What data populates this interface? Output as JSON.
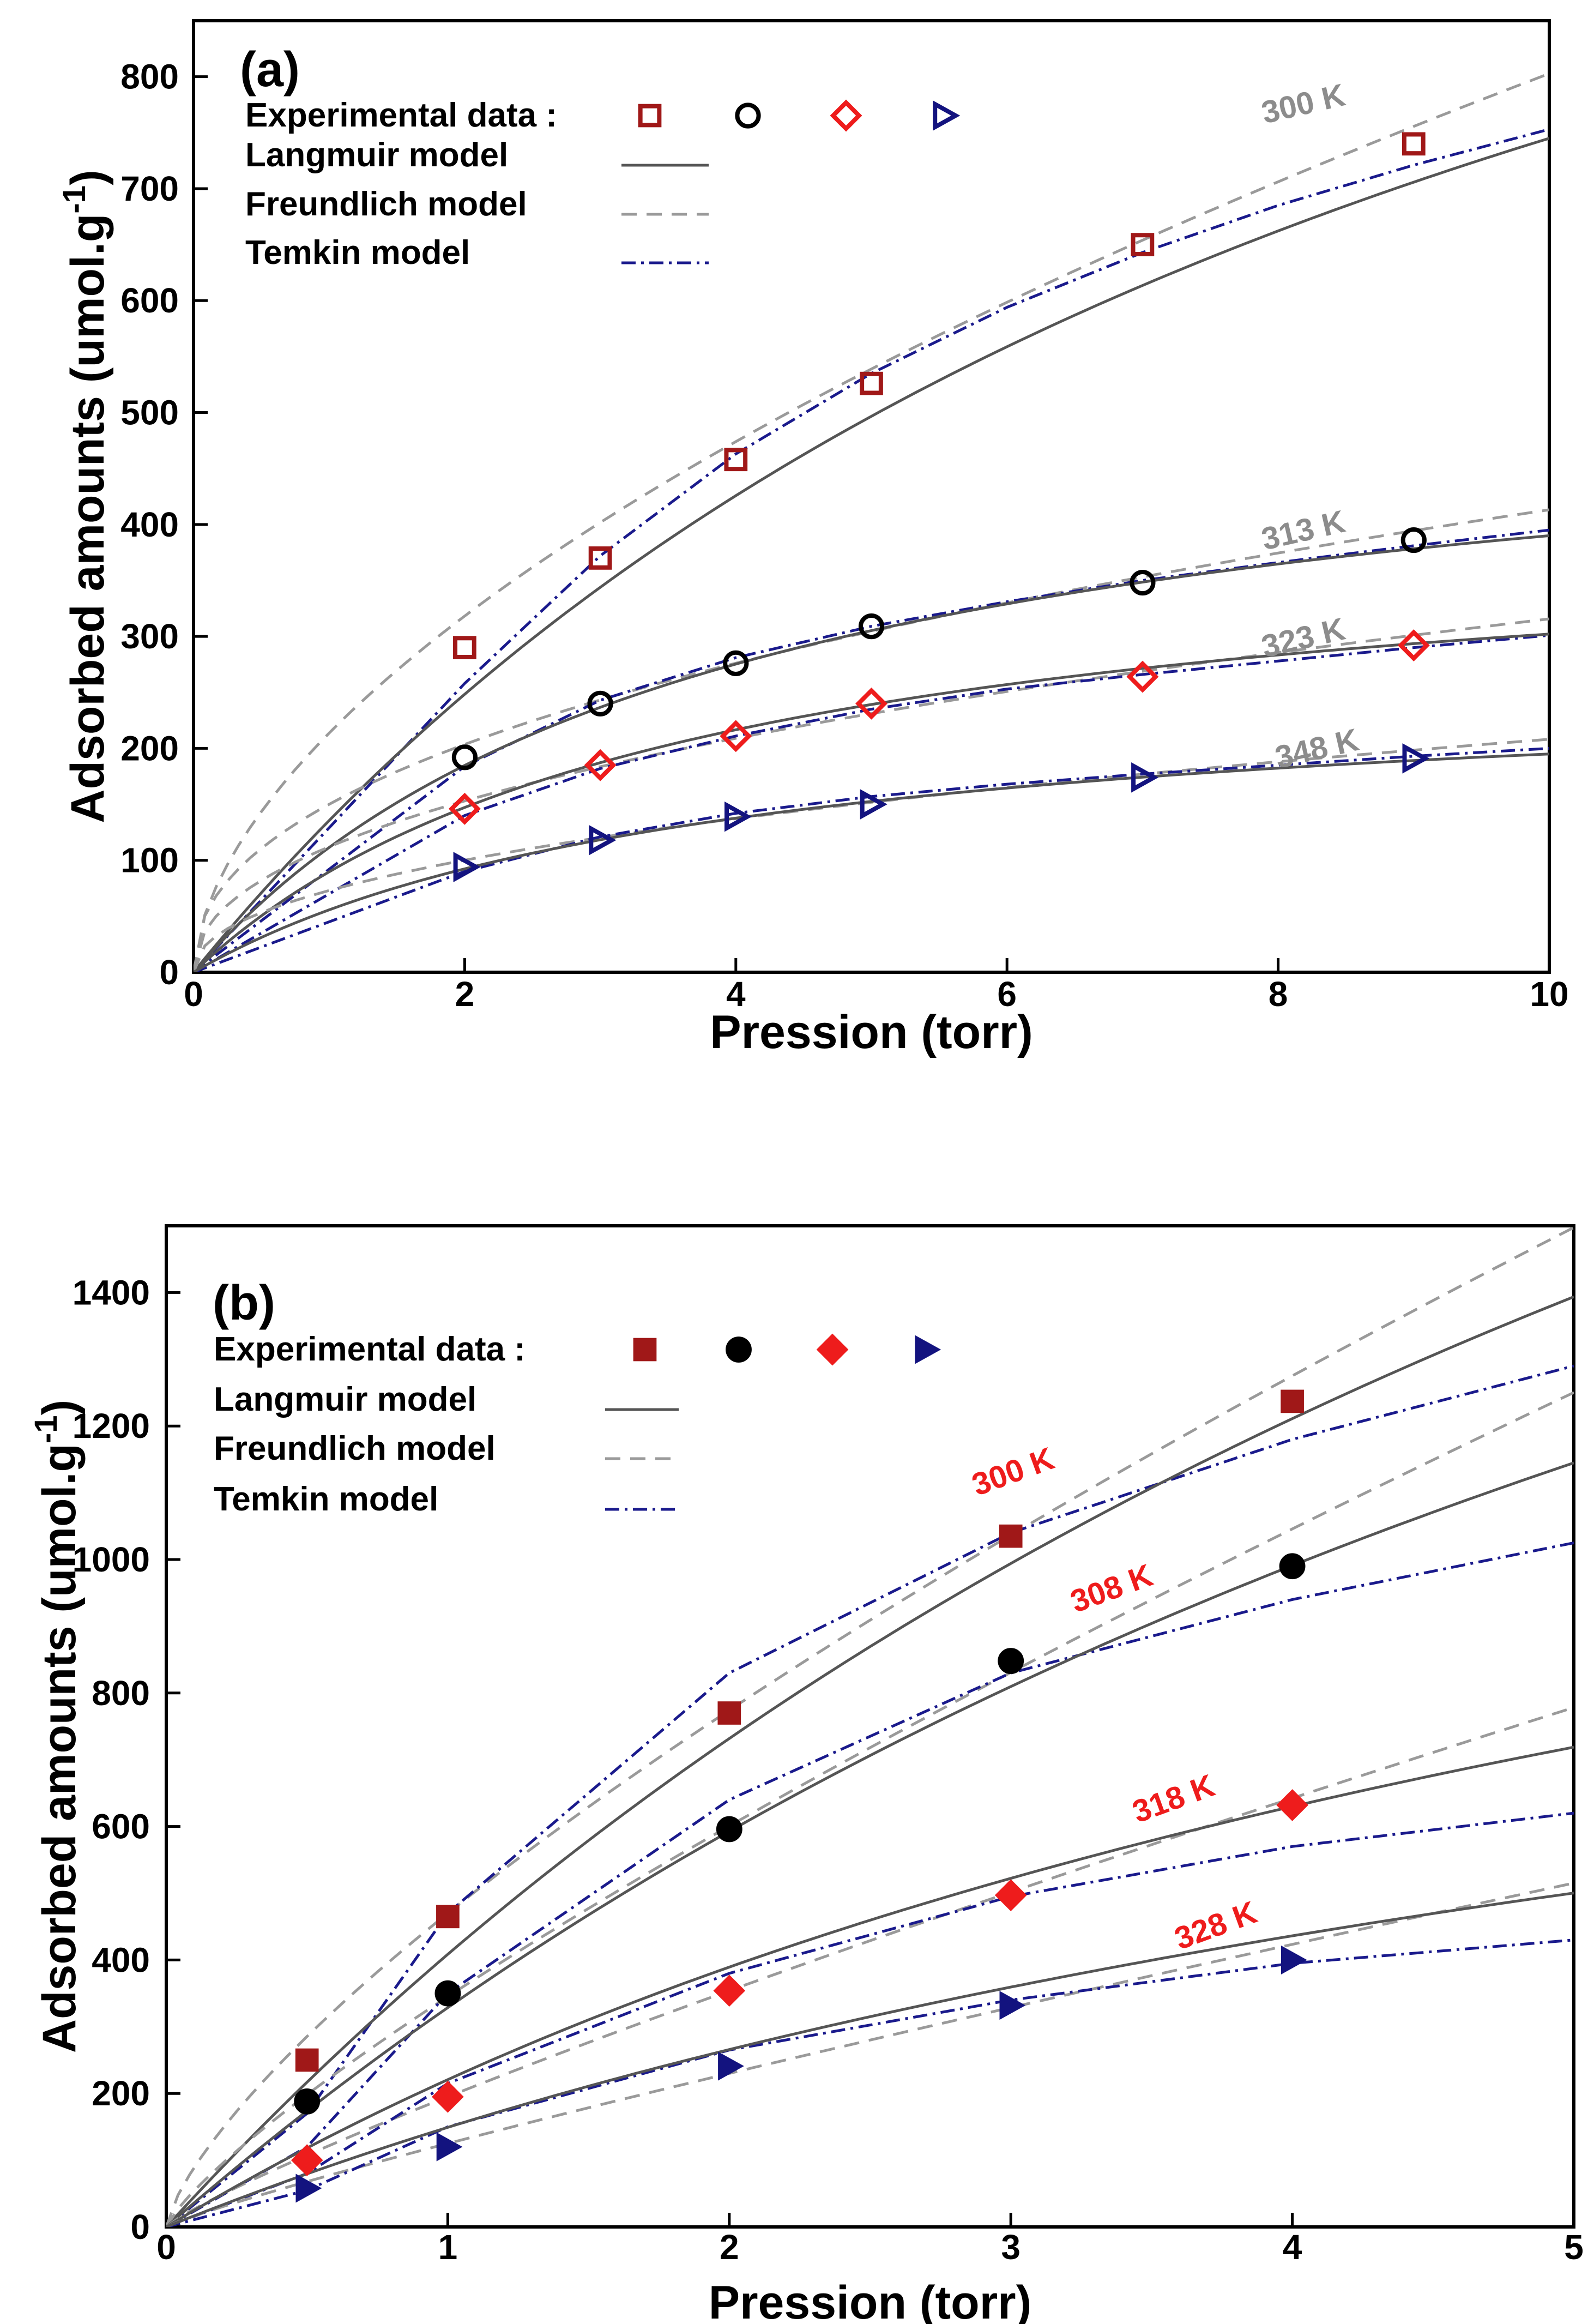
{
  "colors": {
    "black": "#000000",
    "langmuir": "#555555",
    "freundlich": "#9a9a9a",
    "temkin": "#1a1a8c",
    "red": "#ee1c1c",
    "darkred": "#a01818",
    "navy": "#13137f",
    "gray_label": "#8c8c8c",
    "red_label": "#ee1c1c"
  },
  "chart_data": [
    {
      "panel": "(a)",
      "type": "scatter",
      "xlabel": "Pression (torr)",
      "ylabel": "Adsorbed amounts (umol.g",
      "ylabel_sup": "-1",
      "ylabel_tail": ")",
      "xlim": [
        0,
        10
      ],
      "ylim": [
        0,
        850
      ],
      "xticks": [
        0,
        2,
        4,
        6,
        8,
        10
      ],
      "yticks": [
        0,
        100,
        200,
        300,
        400,
        500,
        600,
        700,
        800
      ],
      "legend": {
        "experimental": "Experimental data :",
        "langmuir": "Langmuir model",
        "freundlich": "Freundlich model",
        "temkin": "Temkin model"
      },
      "marker_filled": false,
      "series": [
        {
          "temperature": "300 K",
          "marker": "square",
          "color": "#a01818",
          "x": [
            2,
            3,
            4,
            5,
            7,
            9
          ],
          "y": [
            290,
            370,
            458,
            526,
            650,
            740
          ],
          "label_at": [
            7.9,
            758
          ]
        },
        {
          "temperature": "313 K",
          "marker": "circle",
          "color": "#000000",
          "x": [
            2,
            3,
            4,
            5,
            7,
            9
          ],
          "y": [
            192,
            240,
            276,
            309,
            348,
            386
          ],
          "label_at": [
            7.9,
            377
          ]
        },
        {
          "temperature": "323 K",
          "marker": "diamond",
          "color": "#ee1c1c",
          "x": [
            2,
            3,
            4,
            5,
            7,
            9
          ],
          "y": [
            146,
            185,
            211,
            240,
            264,
            292
          ],
          "label_at": [
            7.9,
            281
          ]
        },
        {
          "temperature": "348 K",
          "marker": "triangle-right",
          "color": "#13137f",
          "x": [
            2,
            3,
            4,
            5,
            7,
            9
          ],
          "y": [
            94,
            118,
            139,
            150,
            174,
            191
          ],
          "label_at": [
            8.0,
            182
          ]
        }
      ],
      "models": {
        "langmuir": [
          {
            "qm": 1490,
            "b": 0.1
          },
          {
            "qm": 540,
            "b": 0.26
          },
          {
            "qm": 410,
            "b": 0.28
          },
          {
            "qm": 270,
            "b": 0.26
          }
        ],
        "freundlich": [
          {
            "k": 213.6,
            "n": 0.575
          },
          {
            "k": 150.0,
            "n": 0.44
          },
          {
            "k": 112.0,
            "n": 0.45
          },
          {
            "k": 73.0,
            "n": 0.455
          }
        ],
        "temkin": [
          {
            "p": [
              0,
              2,
              3,
              4,
              5,
              6,
              7,
              8,
              9,
              10
            ],
            "q": [
              0,
              258,
              372,
              463,
              535,
              594,
              643,
              685,
              721,
              753
            ]
          },
          {
            "p": [
              0,
              2,
              3,
              4,
              5,
              6,
              7,
              8,
              9,
              10
            ],
            "q": [
              0,
              184,
              243,
              281,
              309,
              331,
              350,
              366,
              381,
              395
            ]
          },
          {
            "p": [
              0,
              2,
              3,
              4,
              5,
              6,
              7,
              8,
              9,
              10
            ],
            "q": [
              0,
              140,
              182,
              211,
              235,
              253,
              266,
              278,
              290,
              301
            ]
          },
          {
            "p": [
              0,
              2,
              3,
              4,
              5,
              6,
              7,
              8,
              9,
              10
            ],
            "q": [
              0,
              90,
              121,
              142,
              157,
              168,
              177,
              185,
              193,
              200
            ]
          }
        ]
      }
    },
    {
      "panel": "(b)",
      "type": "scatter",
      "xlabel": "Pression (torr)",
      "ylabel": "Adsorbed amounts (umol.g",
      "ylabel_sup": "-1",
      "ylabel_tail": ")",
      "xlim": [
        0,
        5
      ],
      "ylim": [
        0,
        1500
      ],
      "xticks": [
        0,
        1,
        2,
        3,
        4,
        5
      ],
      "yticks": [
        0,
        200,
        400,
        600,
        800,
        1000,
        1200,
        1400
      ],
      "legend": {
        "experimental": "Experimental data :",
        "langmuir": "Langmuir model",
        "freundlich": "Freundlich model",
        "temkin": "Temkin model"
      },
      "marker_filled": true,
      "series": [
        {
          "temperature": "300 K",
          "marker": "square",
          "color": "#a01818",
          "x": [
            0.5,
            1,
            2,
            3,
            4
          ],
          "y": [
            250,
            465,
            770,
            1035,
            1237
          ],
          "label_at": [
            2.88,
            1095
          ]
        },
        {
          "temperature": "308 K",
          "marker": "circle",
          "color": "#000000",
          "x": [
            0.5,
            1,
            2,
            3,
            4
          ],
          "y": [
            188,
            350,
            596,
            848,
            990
          ],
          "label_at": [
            3.23,
            920
          ]
        },
        {
          "temperature": "318 K",
          "marker": "diamond",
          "color": "#ee1c1c",
          "x": [
            0.5,
            1,
            2,
            3,
            4
          ],
          "y": [
            100,
            195,
            354,
            497,
            632
          ],
          "label_at": [
            3.45,
            605
          ]
        },
        {
          "temperature": "328 K",
          "marker": "triangle-right",
          "color": "#13137f",
          "x": [
            0.5,
            1,
            2,
            3,
            4
          ],
          "y": [
            58,
            120,
            241,
            332,
            400
          ],
          "label_at": [
            3.6,
            415
          ]
        }
      ],
      "models": {
        "langmuir": [
          {
            "qm": 3510,
            "b": 0.1317
          },
          {
            "qm": 3020,
            "b": 0.1221
          },
          {
            "qm": 1650,
            "b": 0.1544
          },
          {
            "qm": 1215,
            "b": 0.14
          }
        ],
        "freundlich": [
          {
            "k": 470,
            "n": 0.72
          },
          {
            "k": 345,
            "n": 0.8
          },
          {
            "k": 195,
            "n": 0.86
          },
          {
            "k": 125,
            "n": 0.88
          }
        ],
        "temkin": [
          {
            "p": [
              0,
              0.5,
              1,
              2,
              3,
              4,
              5
            ],
            "q": [
              0,
              170,
              470,
              830,
              1040,
              1180,
              1290
            ]
          },
          {
            "p": [
              0,
              0.5,
              1,
              2,
              3,
              4,
              5
            ],
            "q": [
              0,
              120,
              350,
              640,
              830,
              940,
              1025
            ]
          },
          {
            "p": [
              0,
              0.5,
              1,
              2,
              3,
              4,
              5
            ],
            "q": [
              0,
              80,
              215,
              380,
              495,
              570,
              620
            ]
          },
          {
            "p": [
              0,
              0.5,
              1,
              2,
              3,
              4,
              5
            ],
            "q": [
              0,
              55,
              150,
              265,
              340,
              395,
              430
            ]
          }
        ]
      }
    }
  ]
}
